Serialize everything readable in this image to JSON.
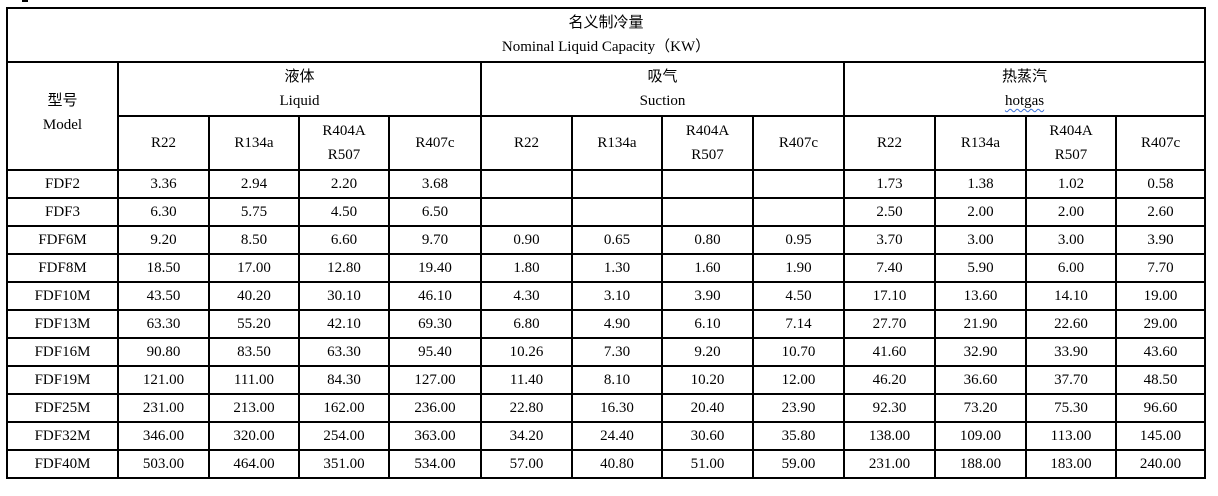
{
  "title": {
    "zh": "名义制冷量",
    "en": "Nominal Liquid Capacity（KW）"
  },
  "model_header": {
    "zh": "型号",
    "en": "Model"
  },
  "groups": [
    {
      "zh": "液体",
      "en": "Liquid"
    },
    {
      "zh": "吸气",
      "en": "Suction"
    },
    {
      "zh": "热蒸汽",
      "en": "hotgas"
    }
  ],
  "refrigerants": [
    {
      "line1": "R22",
      "line2": ""
    },
    {
      "line1": "R134a",
      "line2": ""
    },
    {
      "line1": "R404A",
      "line2": "R507"
    },
    {
      "line1": "R407c",
      "line2": ""
    }
  ],
  "rows": [
    {
      "model": "FDF2",
      "values": [
        "3.36",
        "2.94",
        "2.20",
        "3.68",
        "",
        "",
        "",
        "",
        "1.73",
        "1.38",
        "1.02",
        "0.58"
      ]
    },
    {
      "model": "FDF3",
      "values": [
        "6.30",
        "5.75",
        "4.50",
        "6.50",
        "",
        "",
        "",
        "",
        "2.50",
        "2.00",
        "2.00",
        "2.60"
      ]
    },
    {
      "model": "FDF6M",
      "values": [
        "9.20",
        "8.50",
        "6.60",
        "9.70",
        "0.90",
        "0.65",
        "0.80",
        "0.95",
        "3.70",
        "3.00",
        "3.00",
        "3.90"
      ]
    },
    {
      "model": "FDF8M",
      "values": [
        "18.50",
        "17.00",
        "12.80",
        "19.40",
        "1.80",
        "1.30",
        "1.60",
        "1.90",
        "7.40",
        "5.90",
        "6.00",
        "7.70"
      ]
    },
    {
      "model": "FDF10M",
      "values": [
        "43.50",
        "40.20",
        "30.10",
        "46.10",
        "4.30",
        "3.10",
        "3.90",
        "4.50",
        "17.10",
        "13.60",
        "14.10",
        "19.00"
      ]
    },
    {
      "model": "FDF13M",
      "values": [
        "63.30",
        "55.20",
        "42.10",
        "69.30",
        "6.80",
        "4.90",
        "6.10",
        "7.14",
        "27.70",
        "21.90",
        "22.60",
        "29.00"
      ]
    },
    {
      "model": "FDF16M",
      "values": [
        "90.80",
        "83.50",
        "63.30",
        "95.40",
        "10.26",
        "7.30",
        "9.20",
        "10.70",
        "41.60",
        "32.90",
        "33.90",
        "43.60"
      ]
    },
    {
      "model": "FDF19M",
      "values": [
        "121.00",
        "111.00",
        "84.30",
        "127.00",
        "11.40",
        "8.10",
        "10.20",
        "12.00",
        "46.20",
        "36.60",
        "37.70",
        "48.50"
      ]
    },
    {
      "model": "FDF25M",
      "values": [
        "231.00",
        "213.00",
        "162.00",
        "236.00",
        "22.80",
        "16.30",
        "20.40",
        "23.90",
        "92.30",
        "73.20",
        "75.30",
        "96.60"
      ]
    },
    {
      "model": "FDF32M",
      "values": [
        "346.00",
        "320.00",
        "254.00",
        "363.00",
        "34.20",
        "24.40",
        "30.60",
        "35.80",
        "138.00",
        "109.00",
        "113.00",
        "145.00"
      ]
    },
    {
      "model": "FDF40M",
      "values": [
        "503.00",
        "464.00",
        "351.00",
        "534.00",
        "57.00",
        "40.80",
        "51.00",
        "59.00",
        "231.00",
        "188.00",
        "183.00",
        "240.00"
      ]
    }
  ]
}
